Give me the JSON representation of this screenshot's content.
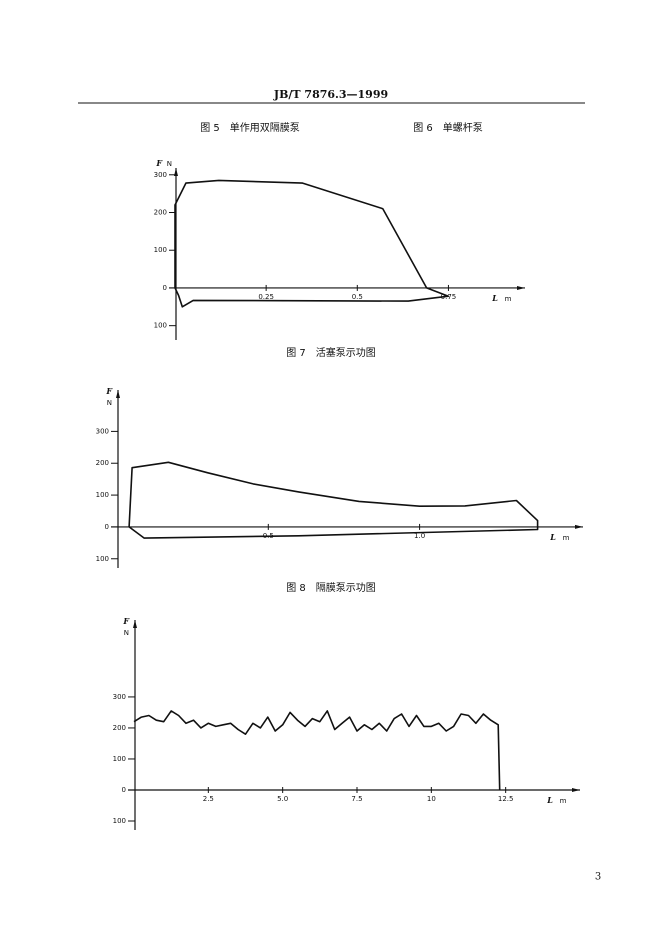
{
  "header": {
    "title": "JB/T 7876.3—1999"
  },
  "captions": [
    "图 5　单作用双隔膜泵",
    "图 6　单螺杆泵",
    "图 7　活塞泵示功图",
    "图 8　隔膜泵示功图"
  ],
  "page_number": "3",
  "chart_data": [
    {
      "type": "line",
      "closed": true,
      "y_label": "F",
      "y_unit": "N",
      "x_label": "L",
      "x_unit": "m",
      "x": [
        0,
        0.03,
        0.12,
        0.35,
        0.57,
        0.69,
        0.75,
        0.64,
        0.05,
        0.02,
        0.01,
        0
      ],
      "values": [
        220,
        278,
        285,
        278,
        210,
        0,
        -22,
        -35,
        -33,
        -50,
        -20,
        0
      ],
      "xlim": [
        0,
        0.96
      ],
      "ylim": [
        -138,
        318
      ],
      "xticks": [
        0.25,
        0.5,
        0.75
      ],
      "yticks": [
        300,
        200,
        100,
        0,
        {
          "value": -100,
          "label": "100"
        }
      ]
    },
    {
      "type": "line",
      "closed": true,
      "y_label": "F",
      "y_unit": "N",
      "x_label": "L",
      "x_unit": "m",
      "x": [
        0.05,
        0.17,
        0.3,
        0.45,
        0.6,
        0.8,
        1.0,
        1.15,
        1.32,
        1.39,
        1.39,
        0.6,
        0.09,
        0.04
      ],
      "values": [
        186,
        203,
        170,
        135,
        110,
        80,
        65,
        66,
        83,
        20,
        -8,
        -28,
        -35,
        0
      ],
      "xlim": [
        0,
        1.54
      ],
      "ylim": [
        -129,
        430
      ],
      "xticks": [
        0.5,
        {
          "value": 1.0,
          "label": "1.0"
        }
      ],
      "yticks": [
        300,
        200,
        100,
        0,
        {
          "value": -100,
          "label": "100"
        }
      ]
    },
    {
      "type": "line",
      "closed": false,
      "y_label": "F",
      "y_unit": "N",
      "x_label": "L",
      "x_unit": "m",
      "x": [
        0,
        0.25,
        0.5,
        0.75,
        1,
        1.25,
        1.5,
        1.75,
        2,
        2.25,
        2.5,
        2.75,
        3,
        3.25,
        3.5,
        3.75,
        4,
        4.25,
        4.5,
        4.75,
        5,
        5.25,
        5.5,
        5.75,
        6,
        6.25,
        6.5,
        6.75,
        7,
        7.25,
        7.5,
        7.75,
        8,
        8.25,
        8.5,
        8.75,
        9,
        9.25,
        9.5,
        9.75,
        10,
        10.25,
        10.5,
        10.75,
        11,
        11.25,
        11.5,
        11.75,
        12,
        12.25,
        12.3
      ],
      "values": [
        220,
        235,
        240,
        225,
        220,
        255,
        240,
        215,
        225,
        200,
        215,
        205,
        210,
        215,
        195,
        180,
        215,
        200,
        235,
        190,
        210,
        250,
        225,
        205,
        230,
        220,
        255,
        195,
        215,
        235,
        190,
        210,
        195,
        215,
        190,
        230,
        245,
        205,
        240,
        205,
        205,
        215,
        190,
        205,
        245,
        240,
        215,
        245,
        225,
        210,
        0
      ],
      "xlim": [
        0,
        15
      ],
      "ylim": [
        -129,
        548
      ],
      "xticks": [
        2.5,
        {
          "value": 5.0,
          "label": "5.0"
        },
        7.5,
        10,
        12.5
      ],
      "yticks": [
        300,
        200,
        100,
        0,
        {
          "value": -100,
          "label": "100"
        }
      ]
    }
  ]
}
